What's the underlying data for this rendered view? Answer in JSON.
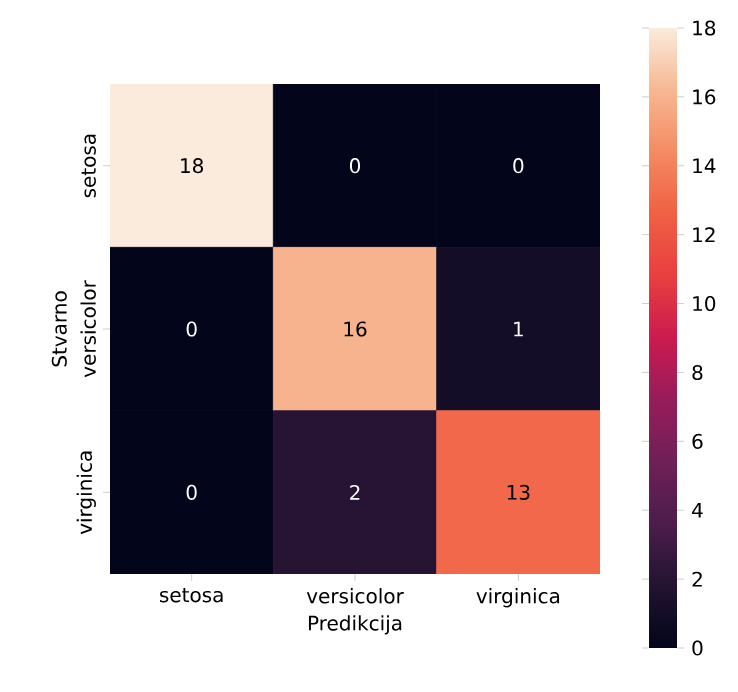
{
  "chart_data": {
    "type": "heatmap",
    "xlabel": "Predikcija",
    "ylabel": "Stvarno",
    "categories": [
      "setosa",
      "versicolor",
      "virginica"
    ],
    "y_categories": [
      "setosa",
      "versicolor",
      "virginica"
    ],
    "cells": [
      [
        18,
        0,
        0
      ],
      [
        0,
        16,
        1
      ],
      [
        0,
        2,
        13
      ]
    ],
    "clim": [
      0,
      18
    ],
    "cticks": [
      0,
      2,
      4,
      6,
      8,
      10,
      12,
      14,
      16,
      18
    ],
    "data_labels": true
  }
}
